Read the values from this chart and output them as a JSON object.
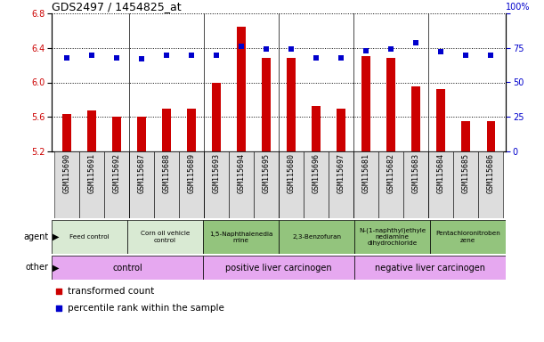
{
  "title": "GDS2497 / 1454825_at",
  "samples": [
    "GSM115690",
    "GSM115691",
    "GSM115692",
    "GSM115687",
    "GSM115688",
    "GSM115689",
    "GSM115693",
    "GSM115694",
    "GSM115695",
    "GSM115680",
    "GSM115696",
    "GSM115697",
    "GSM115681",
    "GSM115682",
    "GSM115683",
    "GSM115684",
    "GSM115685",
    "GSM115686"
  ],
  "bar_values": [
    5.63,
    5.67,
    5.6,
    5.6,
    5.7,
    5.7,
    6.0,
    6.65,
    6.28,
    6.28,
    5.73,
    5.7,
    6.3,
    6.28,
    5.95,
    5.92,
    5.55,
    5.55
  ],
  "percentile_values": [
    68,
    70,
    68,
    67,
    70,
    70,
    70,
    76,
    74,
    74,
    68,
    68,
    73,
    74,
    79,
    72,
    70,
    70
  ],
  "ylim_left": [
    5.2,
    6.8
  ],
  "ylim_right": [
    0,
    100
  ],
  "yticks_left": [
    5.2,
    5.6,
    6.0,
    6.4,
    6.8
  ],
  "yticks_right": [
    0,
    25,
    50,
    75,
    100
  ],
  "bar_color": "#cc0000",
  "dot_color": "#0000cc",
  "agent_groups": [
    {
      "label": "Feed control",
      "start": 0,
      "end": 3,
      "color": "#d9ead3"
    },
    {
      "label": "Corn oil vehicle\ncontrol",
      "start": 3,
      "end": 6,
      "color": "#d9ead3"
    },
    {
      "label": "1,5-Naphthalenedia\nmine",
      "start": 6,
      "end": 9,
      "color": "#93c47d"
    },
    {
      "label": "2,3-Benzofuran",
      "start": 9,
      "end": 12,
      "color": "#93c47d"
    },
    {
      "label": "N-(1-naphthyl)ethyle\nnediamine\ndihydrochloride",
      "start": 12,
      "end": 15,
      "color": "#93c47d"
    },
    {
      "label": "Pentachloronitroben\nzene",
      "start": 15,
      "end": 18,
      "color": "#93c47d"
    }
  ],
  "other_groups": [
    {
      "label": "control",
      "start": 0,
      "end": 6,
      "color": "#e6a8f0"
    },
    {
      "label": "positive liver carcinogen",
      "start": 6,
      "end": 12,
      "color": "#e6a8f0"
    },
    {
      "label": "negative liver carcinogen",
      "start": 12,
      "end": 18,
      "color": "#e6a8f0"
    }
  ],
  "agent_row_label": "agent",
  "other_row_label": "other",
  "tick_label_fontsize": 6.0,
  "axis_label_fontsize": 7,
  "title_fontsize": 9,
  "bar_width": 0.35
}
